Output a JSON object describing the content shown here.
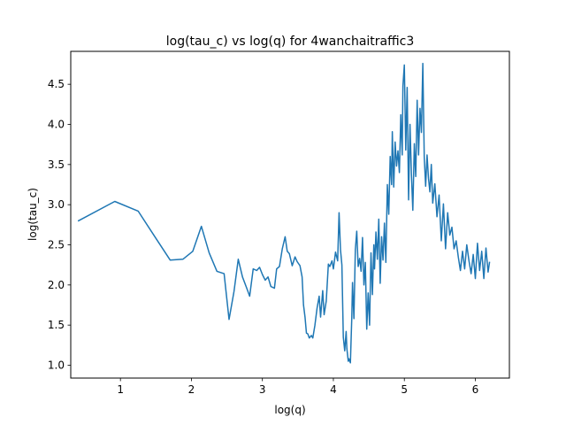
{
  "chart_data": {
    "type": "line",
    "title": "log(tau_c) vs log(q) for 4wanchaitraffic3",
    "xlabel": "log(q)",
    "ylabel": "log(tau_c)",
    "xlim": [
      0.3,
      6.48
    ],
    "ylim": [
      0.84,
      4.91
    ],
    "x_ticks": [
      1,
      2,
      3,
      4,
      5,
      6
    ],
    "x_tick_labels": [
      "1",
      "2",
      "3",
      "4",
      "5",
      "6"
    ],
    "y_ticks": [
      1.0,
      1.5,
      2.0,
      2.5,
      3.0,
      3.5,
      4.0,
      4.5
    ],
    "y_tick_labels": [
      "1.0",
      "1.5",
      "2.0",
      "2.5",
      "3.0",
      "3.5",
      "4.0",
      "4.5"
    ],
    "grid": false,
    "series": [
      {
        "color": "#1f77b4",
        "x": [
          0.41,
          0.92,
          1.25,
          1.5,
          1.7,
          1.88,
          2.02,
          2.14,
          2.25,
          2.36,
          2.46,
          2.53,
          2.6,
          2.66,
          2.72,
          2.78,
          2.82,
          2.87,
          2.92,
          2.96,
          3.0,
          3.04,
          3.08,
          3.12,
          3.17,
          3.2,
          3.24,
          3.28,
          3.32,
          3.35,
          3.38,
          3.42,
          3.46,
          3.49,
          3.53,
          3.56,
          3.58,
          3.6,
          3.62,
          3.64,
          3.66,
          3.69,
          3.71,
          3.74,
          3.77,
          3.8,
          3.82,
          3.85,
          3.87,
          3.9,
          3.93,
          3.95,
          3.98,
          4.0,
          4.03,
          4.06,
          4.08,
          4.1,
          4.12,
          4.14,
          4.16,
          4.18,
          4.19,
          4.21,
          4.22,
          4.24,
          4.26,
          4.27,
          4.29,
          4.31,
          4.33,
          4.35,
          4.37,
          4.39,
          4.41,
          4.43,
          4.45,
          4.47,
          4.49,
          4.51,
          4.53,
          4.55,
          4.57,
          4.58,
          4.6,
          4.62,
          4.64,
          4.66,
          4.68,
          4.7,
          4.72,
          4.74,
          4.76,
          4.78,
          4.8,
          4.82,
          4.83,
          4.85,
          4.87,
          4.89,
          4.91,
          4.93,
          4.95,
          4.97,
          4.98,
          5.0,
          5.02,
          5.04,
          5.06,
          5.08,
          5.1,
          5.12,
          5.14,
          5.16,
          5.18,
          5.2,
          5.22,
          5.24,
          5.26,
          5.28,
          5.3,
          5.32,
          5.34,
          5.36,
          5.38,
          5.4,
          5.43,
          5.46,
          5.49,
          5.52,
          5.55,
          5.58,
          5.61,
          5.64,
          5.67,
          5.7,
          5.73,
          5.76,
          5.79,
          5.82,
          5.85,
          5.88,
          5.91,
          5.94,
          5.97,
          6.0,
          6.03,
          6.06,
          6.09,
          6.12,
          6.15,
          6.18,
          6.2
        ],
        "y": [
          2.8,
          3.04,
          2.92,
          2.58,
          2.31,
          2.32,
          2.42,
          2.73,
          2.4,
          2.17,
          2.14,
          1.57,
          1.92,
          2.32,
          2.1,
          1.96,
          1.86,
          2.2,
          2.18,
          2.22,
          2.13,
          2.06,
          2.1,
          1.98,
          1.96,
          2.2,
          2.23,
          2.45,
          2.6,
          2.42,
          2.39,
          2.24,
          2.35,
          2.29,
          2.24,
          2.1,
          1.75,
          1.6,
          1.4,
          1.39,
          1.34,
          1.37,
          1.34,
          1.5,
          1.71,
          1.86,
          1.6,
          1.93,
          1.63,
          1.8,
          2.26,
          2.23,
          2.3,
          2.2,
          2.41,
          2.3,
          2.9,
          2.44,
          2.25,
          1.35,
          1.18,
          1.42,
          1.21,
          1.05,
          1.08,
          1.03,
          1.6,
          2.03,
          1.58,
          2.44,
          2.67,
          2.23,
          2.33,
          2.17,
          2.59,
          2.0,
          2.28,
          1.45,
          1.9,
          1.5,
          2.4,
          1.88,
          2.5,
          2.2,
          2.66,
          2.32,
          2.82,
          2.02,
          2.6,
          2.31,
          2.77,
          2.28,
          3.25,
          2.88,
          3.6,
          3.25,
          3.91,
          3.22,
          3.78,
          3.48,
          3.67,
          3.4,
          4.12,
          3.62,
          4.48,
          4.74,
          3.68,
          4.46,
          3.06,
          4.0,
          3.38,
          2.93,
          3.76,
          3.35,
          4.3,
          3.62,
          4.2,
          3.9,
          4.76,
          3.6,
          3.23,
          3.62,
          3.33,
          3.16,
          3.5,
          3.02,
          3.26,
          2.85,
          3.12,
          2.55,
          3.01,
          2.45,
          2.9,
          2.62,
          2.72,
          2.45,
          2.55,
          2.35,
          2.18,
          2.42,
          2.2,
          2.5,
          2.3,
          2.14,
          2.38,
          2.08,
          2.52,
          2.18,
          2.42,
          2.08,
          2.46,
          2.16,
          2.28
        ]
      }
    ]
  }
}
